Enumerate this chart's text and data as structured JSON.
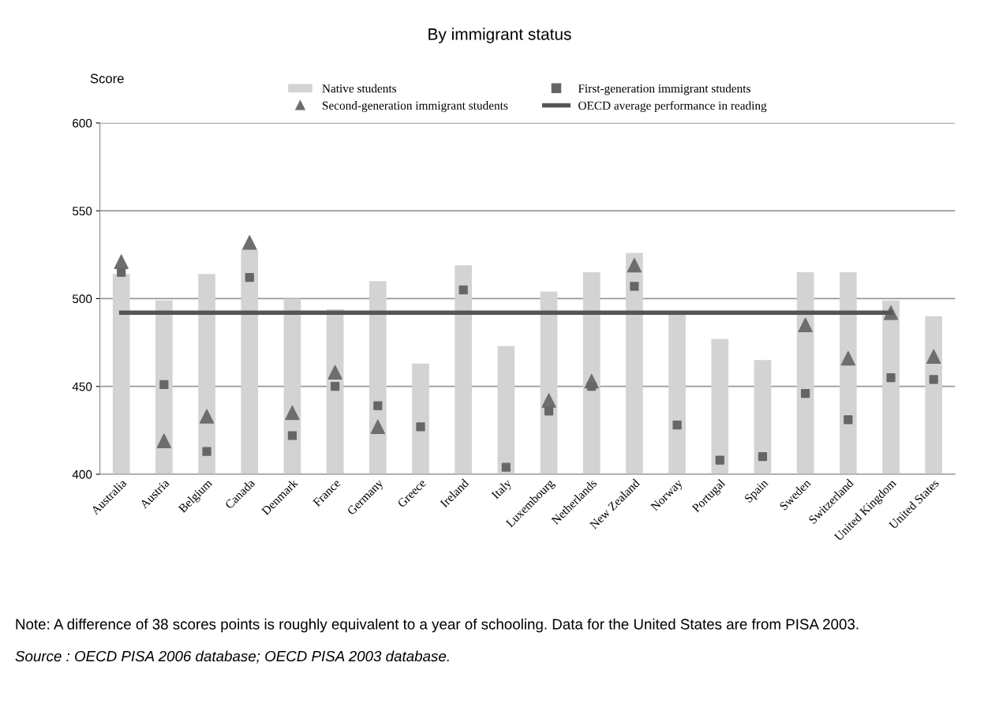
{
  "chart_data": {
    "type": "bar",
    "title": "By immigrant status",
    "ylabel": "Score",
    "categories": [
      "Australia",
      "Austria",
      "Belgium",
      "Canada",
      "Denmark",
      "France",
      "Germany",
      "Greece",
      "Ireland",
      "Italy",
      "Luxembourg",
      "Netherlands",
      "New Zealand",
      "Norway",
      "Portugal",
      "Spain",
      "Sweden",
      "Switzerland",
      "United Kingdom",
      "United States"
    ],
    "series": [
      {
        "name": "Native students",
        "color": "#d3d3d3",
        "values": [
          514,
          499,
          514,
          528,
          500,
          494,
          510,
          463,
          519,
          473,
          504,
          515,
          526,
          491,
          477,
          465,
          515,
          515,
          499,
          490
        ]
      },
      {
        "name": "Second-generation immigrant students",
        "type": "scatter",
        "marker": "triangle",
        "color": "#6e6e6e",
        "values": [
          521,
          419,
          433,
          532,
          435,
          458,
          427,
          null,
          null,
          null,
          442,
          453,
          519,
          null,
          null,
          null,
          485,
          466,
          492,
          467
        ]
      },
      {
        "name": "First-generation immigrant students",
        "type": "scatter",
        "marker": "square",
        "color": "#666666",
        "values": [
          515,
          451,
          413,
          512,
          422,
          450,
          439,
          427,
          505,
          404,
          436,
          450,
          507,
          428,
          408,
          410,
          446,
          431,
          455,
          454
        ]
      },
      {
        "name": "OECD average performance in reading",
        "type": "line",
        "marker": "none",
        "color": "#555555",
        "values": [
          492,
          492,
          492,
          492,
          492,
          492,
          492,
          492,
          492,
          492,
          492,
          492,
          492,
          492,
          492,
          492,
          492,
          492,
          492,
          null
        ]
      }
    ],
    "ylim": [
      400,
      600
    ],
    "yticks": [
      400,
      450,
      500,
      550,
      600
    ],
    "grid": "y",
    "legend": "top",
    "annotations": [
      "Note: A difference of 38 scores points is roughly equivalent to a year of schooling. Data for the United States are from PISA 2003.",
      "Source : OECD PISA 2006 database; OECD PISA 2003 database."
    ]
  }
}
